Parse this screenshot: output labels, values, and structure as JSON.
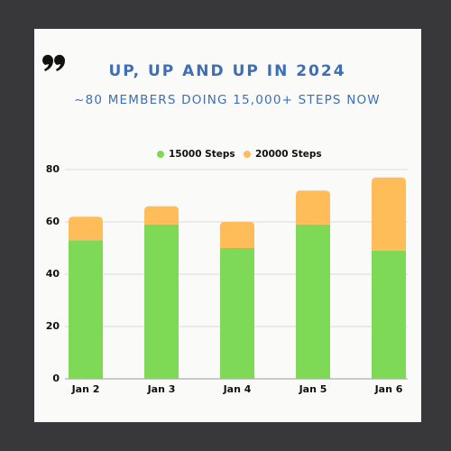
{
  "chart_data": {
    "type": "stacked_bar",
    "title": "UP, UP AND UP IN 2024",
    "subtitle": "~80 MEMBERS DOING 15,000+ STEPS NOW",
    "categories": [
      "Jan 2",
      "Jan 3",
      "Jan 4",
      "Jan 5",
      "Jan 6"
    ],
    "series": [
      {
        "name": "15000 Steps",
        "color": "#7ed957",
        "values": [
          53,
          59,
          50,
          59,
          49
        ]
      },
      {
        "name": "20000 Steps",
        "color": "#ffbd59",
        "values": [
          9,
          7,
          10,
          13,
          28
        ]
      }
    ],
    "ylim": [
      0,
      80
    ],
    "yticks": [
      0,
      20,
      40,
      60,
      80
    ],
    "grid": true,
    "legend": "top"
  }
}
